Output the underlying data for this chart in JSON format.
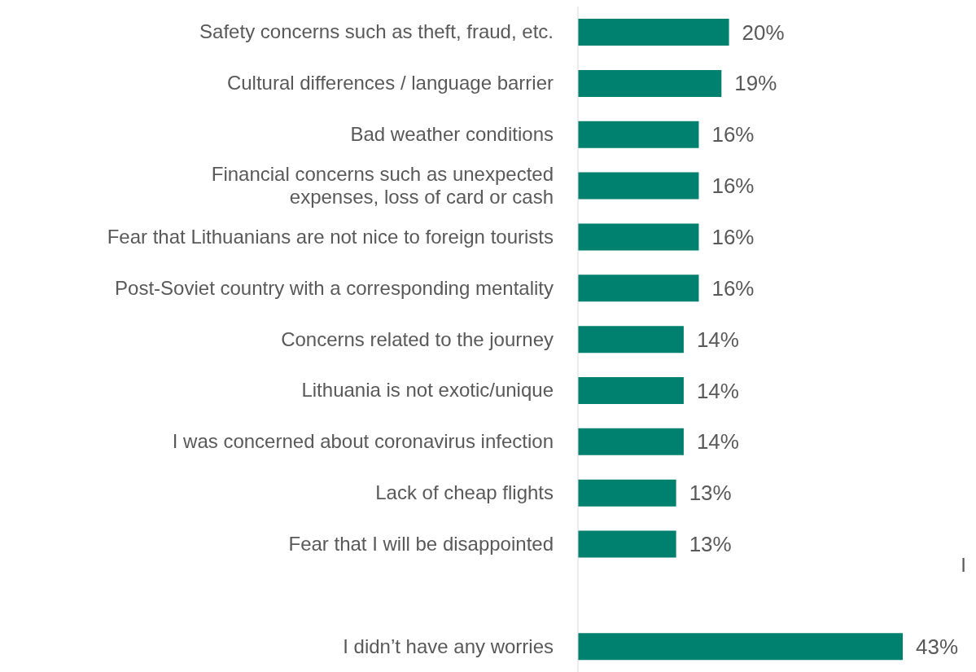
{
  "chart_data": {
    "type": "bar",
    "orientation": "horizontal",
    "categories": [
      "Safety concerns such as theft, fraud, etc.",
      "Cultural differences / language barrier",
      "Bad weather conditions",
      "Financial concerns such as unexpected expenses, loss of card or cash",
      "Fear that Lithuanians are not nice to foreign tourists",
      "Post-Soviet country with a corresponding mentality",
      "Concerns related to the journey",
      "Lithuania is not exotic/unique",
      "I was concerned about coronavirus infection",
      "Lack of cheap flights",
      "Fear that I will be disappointed",
      null,
      "I didn’t have any worries"
    ],
    "values": [
      20,
      19,
      16,
      16,
      16,
      16,
      14,
      14,
      14,
      13,
      13,
      null,
      43
    ],
    "value_labels": [
      "20%",
      "19%",
      "16%",
      "16%",
      "16%",
      "16%",
      "14%",
      "14%",
      "14%",
      "13%",
      "13%",
      null,
      "43%"
    ],
    "color": "#00806e",
    "annotations": [
      "I"
    ]
  }
}
